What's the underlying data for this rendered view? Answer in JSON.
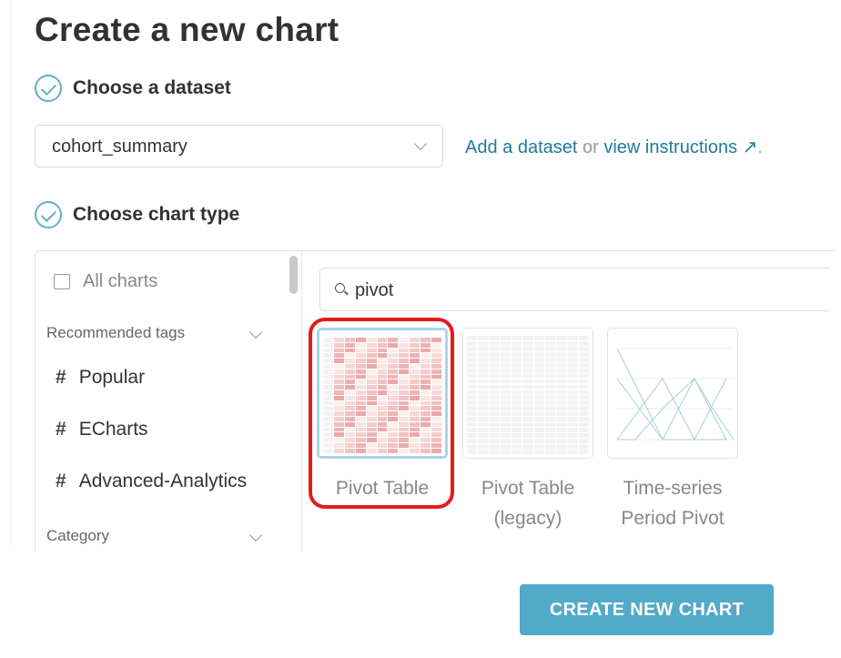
{
  "title": "Create a new chart",
  "steps": {
    "dataset": "Choose a dataset",
    "chart_type": "Choose chart type"
  },
  "dataset_select": {
    "value": "cohort_summary"
  },
  "links": {
    "add_dataset": "Add a dataset",
    "or": " or ",
    "view_instructions": "view instructions",
    "suffix": "."
  },
  "sidebar": {
    "all_charts": "All charts",
    "recommended_tags": "Recommended tags",
    "tags": [
      {
        "label": "Popular"
      },
      {
        "label": "ECharts"
      },
      {
        "label": "Advanced-Analytics"
      }
    ],
    "category": "Category"
  },
  "search": {
    "value": "pivot",
    "icon": "search-icon"
  },
  "charts": [
    {
      "label": "Pivot Table",
      "selected": true
    },
    {
      "label": "Pivot Table (legacy)"
    },
    {
      "label": "Time-series Period Pivot"
    }
  ],
  "highlight_color": "#e31b1b",
  "accent": "#53a9c8",
  "create_button": "CREATE NEW CHART"
}
